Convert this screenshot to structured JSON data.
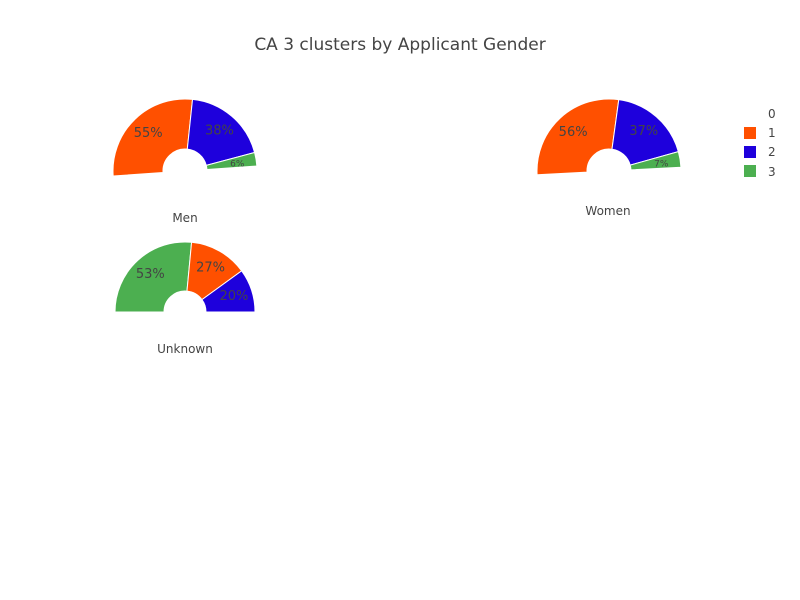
{
  "chart_data": {
    "type": "pie",
    "title": "CA 3 clusters by Applicant Gender",
    "legend": {
      "placement": "top-right",
      "entries": [
        {
          "label": "0",
          "color": ""
        },
        {
          "label": "1",
          "color": "#ff5000"
        },
        {
          "label": "2",
          "color": "#1e00dc"
        },
        {
          "label": "3",
          "color": "#4caf50"
        }
      ]
    },
    "pies": [
      {
        "name": "Men",
        "slices": [
          {
            "cluster": "1",
            "value": 55,
            "label": "55%",
            "color": "#ff5000"
          },
          {
            "cluster": "2",
            "value": 38,
            "label": "38%",
            "color": "#1e00dc"
          },
          {
            "cluster": "3",
            "value": 6,
            "label": "6%",
            "color": "#4caf50"
          }
        ]
      },
      {
        "name": "Women",
        "slices": [
          {
            "cluster": "1",
            "value": 56,
            "label": "56%",
            "color": "#ff5000"
          },
          {
            "cluster": "2",
            "value": 37,
            "label": "37%",
            "color": "#1e00dc"
          },
          {
            "cluster": "3",
            "value": 7,
            "label": "7%",
            "color": "#4caf50"
          }
        ]
      },
      {
        "name": "Unknown",
        "slices": [
          {
            "cluster": "3",
            "value": 53,
            "label": "53%",
            "color": "#4caf50"
          },
          {
            "cluster": "1",
            "value": 27,
            "label": "27%",
            "color": "#ff5000"
          },
          {
            "cluster": "2",
            "value": 20,
            "label": "20%",
            "color": "#1e00dc"
          }
        ]
      }
    ]
  }
}
